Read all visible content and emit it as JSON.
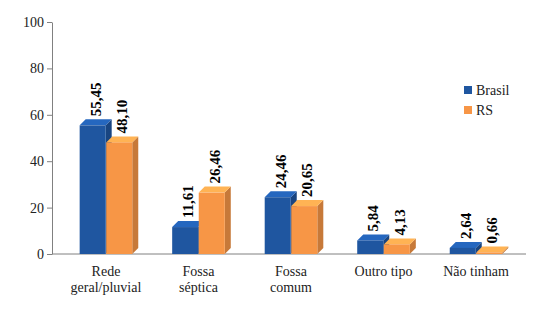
{
  "chart_data": {
    "type": "bar",
    "categories": [
      "Rede geral/pluvial",
      "Fossa séptica",
      "Fossa comum",
      "Outro tipo",
      "Não tinham"
    ],
    "series": [
      {
        "name": "Brasil",
        "color": "#1f56a0",
        "values": [
          55.45,
          11.61,
          24.46,
          5.84,
          2.64
        ],
        "value_labels": [
          "55,45",
          "11,61",
          "24,46",
          "5,84",
          "2,64"
        ]
      },
      {
        "name": "RS",
        "color": "#f79646",
        "values": [
          48.1,
          26.46,
          20.65,
          4.13,
          0.66
        ],
        "value_labels": [
          "48,10",
          "26,46",
          "20,65",
          "4,13",
          "0,66"
        ]
      }
    ],
    "ylim": [
      0,
      100
    ],
    "yticks": [
      0,
      20,
      40,
      60,
      80,
      100
    ],
    "grid": false,
    "legend": "right",
    "data_labels": true
  }
}
